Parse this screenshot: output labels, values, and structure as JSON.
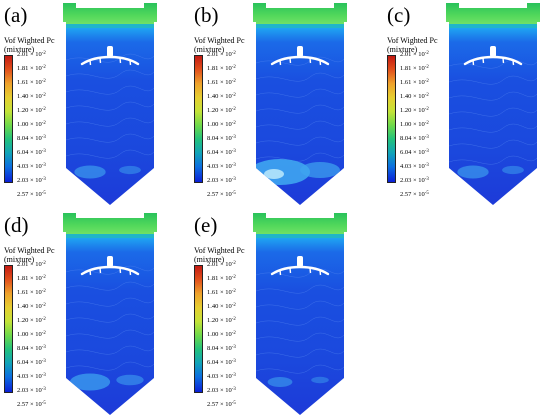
{
  "colorbar": {
    "title_line1": "Vof Wighted Pc",
    "title_line2": "(mixture)",
    "ticks": [
      {
        "mantissa": "2.01",
        "exp": "-2"
      },
      {
        "mantissa": "1.81",
        "exp": "-2"
      },
      {
        "mantissa": "1.61",
        "exp": "-2"
      },
      {
        "mantissa": "1.40",
        "exp": "-2"
      },
      {
        "mantissa": "1.20",
        "exp": "-2"
      },
      {
        "mantissa": "1.00",
        "exp": "-2"
      },
      {
        "mantissa": "8.04",
        "exp": "-3"
      },
      {
        "mantissa": "6.04",
        "exp": "-3"
      },
      {
        "mantissa": "4.03",
        "exp": "-3"
      },
      {
        "mantissa": "2.03",
        "exp": "-3"
      },
      {
        "mantissa": "2.57",
        "exp": "-5"
      }
    ],
    "range": {
      "min": 2.57e-05,
      "max": 0.0201
    }
  },
  "panels": [
    {
      "letter": "(a)"
    },
    {
      "letter": "(b)"
    },
    {
      "letter": "(c)"
    },
    {
      "letter": "(d)"
    },
    {
      "letter": "(e)"
    }
  ],
  "colors": {
    "high": "#c41a12",
    "mid": "#c4e338",
    "low": "#0b1fd6",
    "top_band": "#4fd65a",
    "tank_body": "#1a4fe0",
    "bright_patch": "#3fa5f0"
  }
}
